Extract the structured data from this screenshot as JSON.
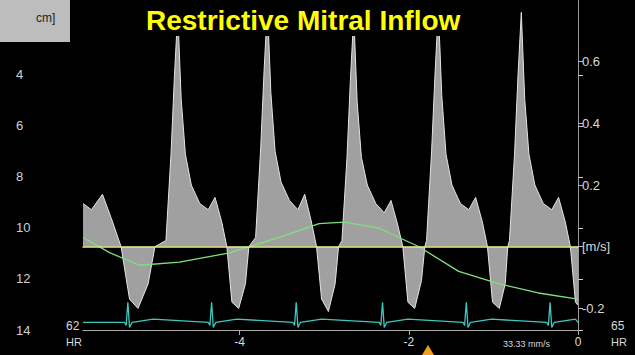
{
  "chart_data": {
    "type": "line",
    "title": "Restrictive Mitral Inflow",
    "xlim": [
      -5.85,
      0
    ],
    "xticks": [
      -4,
      -2,
      0
    ],
    "ylim": [
      -0.27,
      0.8
    ],
    "yticks": [
      -0.2,
      {
        "value": 0,
        "label": "[m/s]"
      },
      0.2,
      0.4,
      0.6
    ],
    "y2label": "cm]",
    "y2lim": [
      1.06,
      14
    ],
    "y2ticks": [
      4,
      6,
      8,
      10,
      12,
      14
    ],
    "annotations": [
      "62",
      "HR",
      "65",
      "HR",
      "33.33 mm/s"
    ],
    "grid": false,
    "series": [
      {
        "type": "area",
        "color": "#e4e4e4",
        "x": [
          -5.85,
          -5.75,
          -5.62,
          -5.5,
          -5.4,
          -5.3,
          -5.2,
          -5.08,
          -5.0,
          -4.87,
          -4.81,
          -4.77,
          -4.73,
          -4.69,
          -4.64,
          -4.57,
          -4.47,
          -4.37,
          -4.29,
          -4.21,
          -4.15,
          -4.09,
          -4.01,
          -3.93,
          -3.89,
          -3.81,
          -3.75,
          -3.71,
          -3.67,
          -3.63,
          -3.58,
          -3.51,
          -3.41,
          -3.31,
          -3.23,
          -3.15,
          -3.09,
          -3.03,
          -2.95,
          -2.87,
          -2.83,
          -2.79,
          -2.73,
          -2.69,
          -2.65,
          -2.61,
          -2.56,
          -2.49,
          -2.39,
          -2.29,
          -2.21,
          -2.13,
          -2.07,
          -2.01,
          -1.93,
          -1.85,
          -1.81,
          -1.79,
          -1.73,
          -1.69,
          -1.65,
          -1.61,
          -1.56,
          -1.49,
          -1.39,
          -1.29,
          -1.21,
          -1.13,
          -1.07,
          -1.01,
          -0.93,
          -0.86,
          -0.83,
          -0.81,
          -0.75,
          -0.71,
          -0.67,
          -0.63,
          -0.58,
          -0.51,
          -0.41,
          -0.31,
          -0.23,
          -0.15,
          -0.09,
          -0.03,
          0
        ],
        "values": [
          0.14,
          0.12,
          0.17,
          0.08,
          0.0,
          -0.17,
          -0.2,
          -0.12,
          0.0,
          0.02,
          0.3,
          0.55,
          0.76,
          0.48,
          0.3,
          0.2,
          0.14,
          0.12,
          0.16,
          0.08,
          0.0,
          -0.18,
          -0.2,
          -0.12,
          0.0,
          0.03,
          0.32,
          0.57,
          0.78,
          0.5,
          0.31,
          0.21,
          0.15,
          0.12,
          0.17,
          0.08,
          0.0,
          -0.17,
          -0.21,
          -0.12,
          0.0,
          0.02,
          0.29,
          0.54,
          0.75,
          0.47,
          0.29,
          0.2,
          0.14,
          0.11,
          0.15,
          0.07,
          0.0,
          -0.18,
          -0.2,
          -0.11,
          0.0,
          0.02,
          0.31,
          0.56,
          0.77,
          0.49,
          0.3,
          0.2,
          0.14,
          0.12,
          0.16,
          0.08,
          0.0,
          -0.18,
          -0.2,
          -0.12,
          0.0,
          0.02,
          0.3,
          0.55,
          0.76,
          0.48,
          0.3,
          0.2,
          0.14,
          0.12,
          0.16,
          0.08,
          0.0,
          -0.18,
          -0.19
        ]
      },
      {
        "type": "line",
        "color": "#3cc8c0",
        "x": [
          -5.85,
          -5.36,
          -5.34,
          -5.32,
          -5.3,
          -5.27,
          -5.02,
          -4.37,
          -4.35,
          -4.33,
          -4.31,
          -4.28,
          -4.03,
          -3.37,
          -3.35,
          -3.33,
          -3.31,
          -3.28,
          -3.03,
          -2.35,
          -2.33,
          -2.31,
          -2.29,
          -2.26,
          -2.01,
          -1.36,
          -1.34,
          -1.32,
          -1.3,
          -1.27,
          -1.02,
          -0.37,
          -0.35,
          -0.33,
          -0.31,
          -0.28,
          -0.03,
          0
        ],
        "values": [
          -0.245,
          -0.245,
          -0.255,
          -0.18,
          -0.262,
          -0.245,
          -0.235,
          -0.245,
          -0.255,
          -0.18,
          -0.262,
          -0.245,
          -0.235,
          -0.245,
          -0.255,
          -0.18,
          -0.262,
          -0.245,
          -0.235,
          -0.245,
          -0.255,
          -0.18,
          -0.262,
          -0.245,
          -0.235,
          -0.245,
          -0.255,
          -0.18,
          -0.262,
          -0.245,
          -0.235,
          -0.245,
          -0.255,
          -0.18,
          -0.262,
          -0.245,
          -0.235,
          -0.245
        ]
      },
      {
        "type": "line",
        "color": "#7fe07f",
        "x": [
          -5.85,
          -5.53,
          -5.18,
          -4.71,
          -4.12,
          -3.53,
          -3.06,
          -2.76,
          -2.35,
          -1.88,
          -1.41,
          -0.94,
          -0.47,
          0
        ],
        "values": [
          0.03,
          -0.02,
          -0.06,
          -0.05,
          -0.02,
          0.03,
          0.075,
          0.08,
          0.06,
          0.0,
          -0.08,
          -0.12,
          -0.15,
          -0.17
        ]
      }
    ]
  }
}
